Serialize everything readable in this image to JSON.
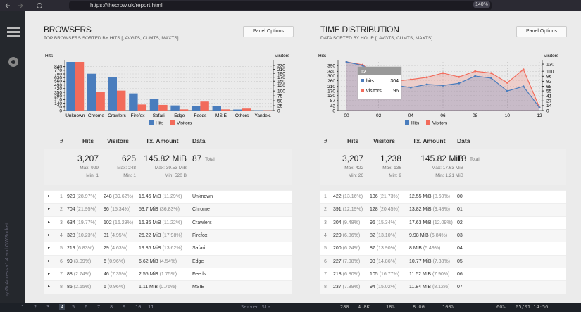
{
  "browser": {
    "url": "https://thecrow.uk/report.html",
    "zoom": "140%"
  },
  "sidebar": {
    "credit": "by GoAccess v1.4 and GWSocket"
  },
  "panels": [
    {
      "title": "BROWSERS",
      "subtitle": "TOP BROWSERS SORTED BY HITS [, AVGTS, CUMTS, MAXTS]",
      "options": "Panel Options",
      "chart_data": {
        "type": "bar",
        "y_label": "Hits",
        "y2_label": "Visitors",
        "categories": [
          "Unknown",
          "Chrome",
          "Crawlers",
          "Firefox",
          "Safari",
          "Edge",
          "Feeds",
          "MSIE",
          "Others",
          "Yandex."
        ],
        "series": [
          {
            "name": "Hits",
            "color": "#4a7dbd",
            "values": [
              929,
              704,
              634,
              328,
              219,
              99,
              88,
              85,
              20,
              5
            ]
          },
          {
            "name": "Visitors",
            "color": "#f26b5b",
            "axis": "y2",
            "values": [
              248,
              96,
              102,
              31,
              29,
              6,
              46,
              6,
              10,
              1
            ]
          }
        ],
        "ylim": [
          0,
          929
        ],
        "yticks": [
          0,
          70,
          140,
          210,
          280,
          350,
          420,
          490,
          560,
          630,
          700,
          770,
          840
        ],
        "y2lim": [
          0,
          248
        ],
        "y2ticks": [
          0,
          25,
          50,
          75,
          100,
          130,
          150,
          170,
          190,
          210,
          230
        ],
        "grid": true
      },
      "table": {
        "headers": [
          "#",
          "Hits",
          "Visitors",
          "Tx. Amount",
          "Data"
        ],
        "summary": {
          "hits": [
            "3,207",
            "Max: 929",
            "Min: 1"
          ],
          "visitors": [
            "625",
            "Max: 248",
            "Min: 1"
          ],
          "tx": [
            "145.82 MiB",
            "Max: 39.53 MiB",
            "Min: 520 B"
          ],
          "data": [
            "87",
            "Total"
          ]
        },
        "rows": [
          [
            1,
            "929",
            "(28.97%)",
            "248",
            "(39.62%)",
            "16.46 MiB",
            "(11.29%)",
            "Unknown"
          ],
          [
            2,
            "704",
            "(21.95%)",
            "96",
            "(15.34%)",
            "53.7 MiB",
            "(36.83%)",
            "Chrome"
          ],
          [
            3,
            "634",
            "(19.77%)",
            "102",
            "(16.29%)",
            "16.36 MiB",
            "(11.22%)",
            "Crawlers"
          ],
          [
            4,
            "328",
            "(10.23%)",
            "31",
            "(4.95%)",
            "26.22 MiB",
            "(17.98%)",
            "Firefox"
          ],
          [
            5,
            "219",
            "(6.83%)",
            "29",
            "(4.63%)",
            "19.86 MiB",
            "(13.62%)",
            "Safari"
          ],
          [
            6,
            "99",
            "(3.09%)",
            "6",
            "(0.96%)",
            "6.62 MiB",
            "(4.54%)",
            "Edge"
          ],
          [
            7,
            "88",
            "(2.74%)",
            "46",
            "(7.35%)",
            "2.55 MiB",
            "(1.75%)",
            "Feeds"
          ],
          [
            8,
            "85",
            "(2.65%)",
            "6",
            "(0.96%)",
            "1.11 MiB",
            "(0.76%)",
            "MSIE"
          ]
        ]
      }
    },
    {
      "title": "TIME DISTRIBUTION",
      "subtitle": "DATA SORTED BY HOUR [, AVGTS, CUMTS, MAXTS]",
      "options": "Panel Options",
      "chart_data": {
        "type": "area",
        "y_label": "Hits",
        "y2_label": "Visitors",
        "categories": [
          "00",
          null,
          "02",
          null,
          "04",
          null,
          "06",
          null,
          "08",
          null,
          "10",
          null,
          "12"
        ],
        "series": [
          {
            "name": "Hits",
            "color": "#4a7dbd",
            "values": [
              422,
              391,
              304,
              220,
              200,
              227,
              218,
              237,
              300,
              282,
              170,
              210,
              26
            ]
          },
          {
            "name": "Visitors",
            "color": "#f26b5b",
            "axis": "y2",
            "values": [
              136,
              128,
              96,
              82,
              87,
              93,
              105,
              94,
              110,
              105,
              78,
              115,
              9
            ]
          }
        ],
        "ylim": [
          0,
          422
        ],
        "yticks": [
          0,
          43,
          87,
          130,
          170,
          210,
          260,
          300,
          340,
          390
        ],
        "y2lim": [
          0,
          136
        ],
        "y2ticks": [
          0,
          14,
          27,
          41,
          55,
          68,
          82,
          96,
          110,
          130
        ],
        "grid": true,
        "tooltip": {
          "title": "02",
          "items": [
            {
              "name": "hits",
              "value": 304
            },
            {
              "name": "visitors",
              "value": 96
            }
          ]
        }
      },
      "table": {
        "headers": [
          "#",
          "Hits",
          "Visitors",
          "Tx. Amount",
          "Data"
        ],
        "summary": {
          "hits": [
            "3,207",
            "Max: 422",
            "Min: 26"
          ],
          "visitors": [
            "1,238",
            "Max: 136",
            "Min: 9"
          ],
          "tx": [
            "145.82 MiB",
            "Max: 17.63 MiB",
            "Min: 1.21 MiB"
          ],
          "data": [
            "13",
            "Total"
          ]
        },
        "rows": [
          [
            1,
            "422",
            "(13.16%)",
            "136",
            "(21.73%)",
            "12.55 MiB",
            "(8.60%)",
            "00"
          ],
          [
            2,
            "391",
            "(12.19%)",
            "128",
            "(20.45%)",
            "13.82 MiB",
            "(9.48%)",
            "01"
          ],
          [
            3,
            "304",
            "(9.48%)",
            "96",
            "(15.34%)",
            "17.63 MiB",
            "(12.09%)",
            "02"
          ],
          [
            4,
            "220",
            "(6.86%)",
            "82",
            "(13.10%)",
            "9.98 MiB",
            "(6.84%)",
            "03"
          ],
          [
            5,
            "200",
            "(6.24%)",
            "87",
            "(13.90%)",
            "8 MiB",
            "(5.49%)",
            "04"
          ],
          [
            6,
            "227",
            "(7.08%)",
            "93",
            "(14.86%)",
            "10.77 MiB",
            "(7.38%)",
            "05"
          ],
          [
            7,
            "218",
            "(6.80%)",
            "105",
            "(16.77%)",
            "11.52 MiB",
            "(7.90%)",
            "06"
          ],
          [
            8,
            "237",
            "(7.39%)",
            "94",
            "(15.02%)",
            "11.84 MiB",
            "(8.12%)",
            "07"
          ]
        ]
      }
    }
  ],
  "taskbar": {
    "workspaces": [
      "1",
      "2",
      "3",
      "4",
      "5",
      "6",
      "7",
      "8",
      "9",
      "10",
      "11"
    ],
    "window": "Server Sta",
    "status": [
      "280",
      "4.8K",
      "18%",
      "8.0G",
      "100%",
      "60%",
      "05/01 14:56"
    ]
  }
}
